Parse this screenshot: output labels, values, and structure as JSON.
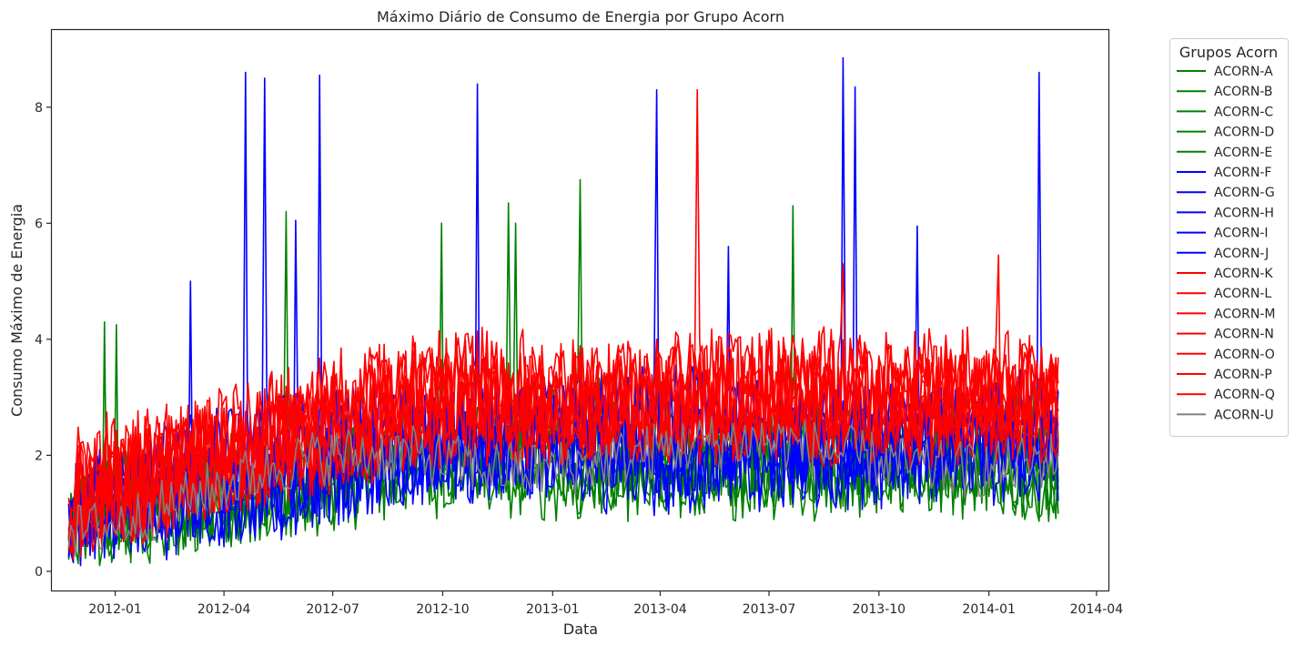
{
  "chart_data": {
    "type": "line",
    "title": "Máximo Diário de Consumo de Energia por Grupo Acorn",
    "xlabel": "Data",
    "ylabel": "Consumo Máximo de Energia",
    "x_range": [
      "2011-11-23",
      "2014-02-28"
    ],
    "xlim": [
      "2011-11-09",
      "2014-04-11"
    ],
    "ylim": [
      -0.33,
      9.33
    ],
    "x_ticks": [
      "2012-01",
      "2012-04",
      "2012-07",
      "2012-10",
      "2013-01",
      "2013-04",
      "2013-07",
      "2013-10",
      "2014-01",
      "2014-04"
    ],
    "y_ticks": [
      0,
      2,
      4,
      6,
      8
    ],
    "legend_title": "Grupos Acorn",
    "legend_position": "outside-right-top",
    "grid": false,
    "series": [
      {
        "name": "ACORN-A",
        "color": "#008000",
        "base": 2.1,
        "amp": 1.0,
        "spikes": [
          [
            "2012-05-24",
            6.2
          ],
          [
            "2012-10-01",
            6.0
          ],
          [
            "2012-11-25",
            6.35
          ],
          [
            "2013-01-25",
            6.75
          ]
        ]
      },
      {
        "name": "ACORN-B",
        "color": "#008000",
        "base": 1.9,
        "amp": 0.8,
        "spikes": [
          [
            "2012-12-01",
            6.0
          ],
          [
            "2013-07-22",
            6.3
          ]
        ]
      },
      {
        "name": "ACORN-C",
        "color": "#008000",
        "base": 1.8,
        "amp": 0.7,
        "spikes": []
      },
      {
        "name": "ACORN-D",
        "color": "#008000",
        "base": 1.9,
        "amp": 0.8,
        "spikes": [
          [
            "2011-12-24",
            4.3
          ],
          [
            "2012-01-03",
            4.25
          ]
        ]
      },
      {
        "name": "ACORN-E",
        "color": "#008000",
        "base": 1.7,
        "amp": 0.6,
        "spikes": []
      },
      {
        "name": "ACORN-F",
        "color": "#0000ff",
        "base": 2.4,
        "amp": 1.0,
        "spikes": [
          [
            "2012-04-20",
            8.6
          ],
          [
            "2012-05-05",
            8.5
          ],
          [
            "2012-06-20",
            8.55
          ],
          [
            "2012-10-30",
            8.4
          ],
          [
            "2013-03-30",
            8.3
          ]
        ]
      },
      {
        "name": "ACORN-G",
        "color": "#0000ff",
        "base": 2.3,
        "amp": 1.0,
        "spikes": [
          [
            "2013-09-02",
            8.85
          ],
          [
            "2013-09-12",
            8.35
          ],
          [
            "2014-02-12",
            8.6
          ]
        ]
      },
      {
        "name": "ACORN-H",
        "color": "#0000ff",
        "base": 2.2,
        "amp": 0.9,
        "spikes": [
          [
            "2012-06-01",
            6.05
          ],
          [
            "2013-05-28",
            5.6
          ],
          [
            "2013-11-02",
            5.95
          ]
        ]
      },
      {
        "name": "ACORN-I",
        "color": "#0000ff",
        "base": 2.0,
        "amp": 0.8,
        "spikes": []
      },
      {
        "name": "ACORN-J",
        "color": "#0000ff",
        "base": 2.1,
        "amp": 0.9,
        "spikes": [
          [
            "2012-03-05",
            5.0
          ]
        ]
      },
      {
        "name": "ACORN-K",
        "color": "#ff0000",
        "base": 3.0,
        "amp": 1.0,
        "spikes": [
          [
            "2013-05-03",
            8.3
          ]
        ]
      },
      {
        "name": "ACORN-L",
        "color": "#ff0000",
        "base": 3.0,
        "amp": 1.0,
        "spikes": []
      },
      {
        "name": "ACORN-M",
        "color": "#ff0000",
        "base": 2.9,
        "amp": 0.9,
        "spikes": []
      },
      {
        "name": "ACORN-N",
        "color": "#ff0000",
        "base": 2.8,
        "amp": 0.9,
        "spikes": []
      },
      {
        "name": "ACORN-O",
        "color": "#ff0000",
        "base": 3.0,
        "amp": 1.0,
        "spikes": [
          [
            "2014-01-10",
            5.45
          ]
        ]
      },
      {
        "name": "ACORN-P",
        "color": "#ff0000",
        "base": 2.9,
        "amp": 0.9,
        "spikes": []
      },
      {
        "name": "ACORN-Q",
        "color": "#ff0000",
        "base": 3.0,
        "amp": 1.0,
        "spikes": [
          [
            "2013-09-01",
            5.3
          ]
        ]
      },
      {
        "name": "ACORN-U",
        "color": "#808080",
        "base": 2.0,
        "amp": 0.5,
        "spikes": []
      }
    ]
  }
}
